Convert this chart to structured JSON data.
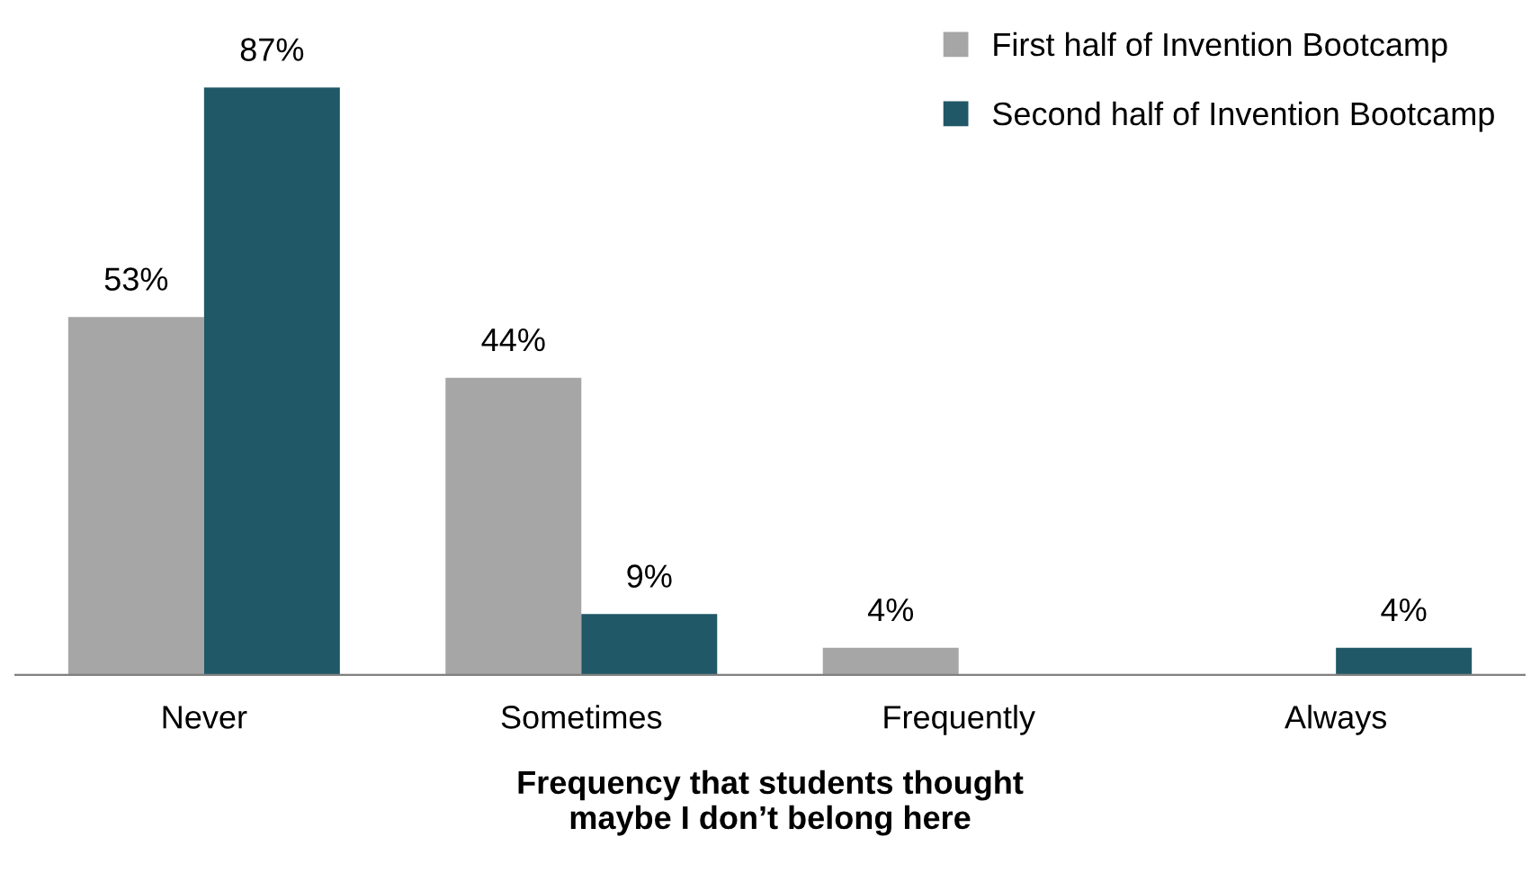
{
  "chart_data": {
    "type": "bar",
    "xlabel": "Frequency that students thought\nmaybe I don’t belong here",
    "categories": [
      "Never",
      "Sometimes",
      "Frequently",
      "Always"
    ],
    "series": [
      {
        "name": "First half of Invention Bootcamp",
        "color": "#a6a6a6",
        "values": [
          53,
          44,
          4,
          null
        ],
        "value_labels": [
          "53%",
          "44%",
          "4%",
          null
        ]
      },
      {
        "name": "Second half of Invention Bootcamp",
        "color": "#215868",
        "values": [
          87,
          9,
          null,
          4
        ],
        "value_labels": [
          "87%",
          "9%",
          null,
          "4%"
        ]
      }
    ],
    "legend": "top right",
    "grid": false
  }
}
